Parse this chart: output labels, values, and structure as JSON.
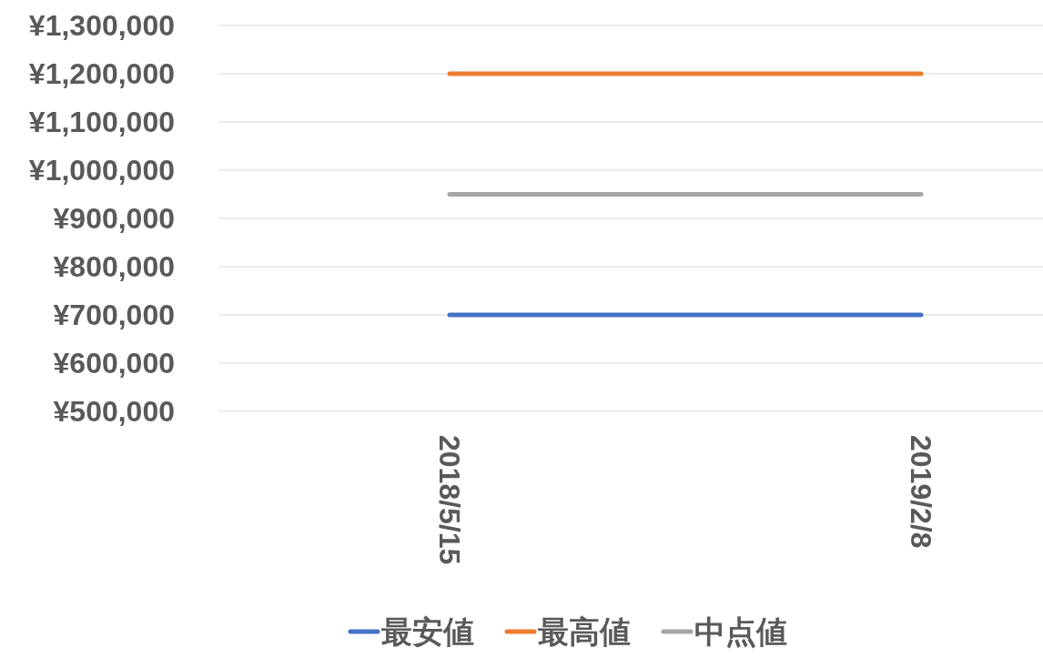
{
  "chart_data": {
    "type": "line",
    "categories": [
      "2018/5/15",
      "2019/2/8"
    ],
    "series": [
      {
        "name": "最安値",
        "color": "#4472c4",
        "values": [
          700000,
          700000
        ]
      },
      {
        "name": "最高値",
        "color": "#ed7d31",
        "values": [
          1200000,
          1200000
        ]
      },
      {
        "name": "中点値",
        "color": "#a5a5a5",
        "values": [
          950000,
          950000
        ]
      }
    ],
    "ylim": [
      500000,
      1300000
    ],
    "yticks": [
      {
        "value": 500000,
        "label": "¥500,000"
      },
      {
        "value": 600000,
        "label": "¥600,000"
      },
      {
        "value": 700000,
        "label": "¥700,000"
      },
      {
        "value": 800000,
        "label": "¥800,000"
      },
      {
        "value": 900000,
        "label": "¥900,000"
      },
      {
        "value": 1000000,
        "label": "¥1,000,000"
      },
      {
        "value": 1100000,
        "label": "¥1,100,000"
      },
      {
        "value": 1200000,
        "label": "¥1,200,000"
      },
      {
        "value": 1300000,
        "label": "¥1,300,000"
      }
    ],
    "grid": "y",
    "legend": "bottom"
  }
}
